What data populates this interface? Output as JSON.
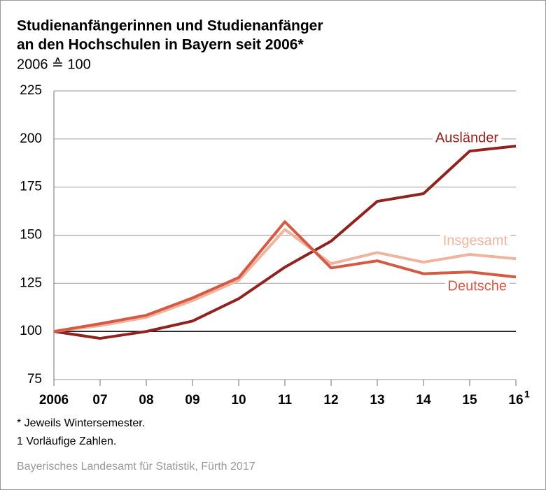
{
  "chart_data": {
    "type": "line",
    "title": [
      "Studienanfängerinnen und Studienanfänger",
      "an den Hochschulen in Bayern seit 2006*"
    ],
    "subtitle": "2006 ≙ 100",
    "categories": [
      "2006",
      "07",
      "08",
      "09",
      "10",
      "11",
      "12",
      "13",
      "14",
      "15",
      "16"
    ],
    "category_footnote_mark": "1",
    "series": [
      {
        "name": "Ausländer",
        "color": "#8e2320",
        "values": [
          100,
          96.4,
          100,
          105.4,
          117,
          133.4,
          146.9,
          167.6,
          171.6,
          193.7,
          196.3
        ]
      },
      {
        "name": "Insgesamt",
        "color": "#efb49e",
        "values": [
          100,
          103,
          107.3,
          116,
          126.5,
          153,
          135.2,
          141,
          136,
          140,
          137.8
        ]
      },
      {
        "name": "Deutsche",
        "color": "#d45a45",
        "values": [
          100,
          104,
          108.4,
          117.4,
          128,
          157,
          133,
          136.7,
          130,
          130.9,
          128.3
        ]
      }
    ],
    "ylim": [
      75,
      225
    ],
    "yticks": [
      75,
      100,
      125,
      150,
      175,
      200,
      225
    ],
    "grid": true,
    "reference_line": 100,
    "footnotes": [
      "* Jeweils Wintersemester.",
      "1  Vorläufige Zahlen."
    ],
    "source": "Bayerisches Landesamt für Statistik, Fürth 2017"
  }
}
